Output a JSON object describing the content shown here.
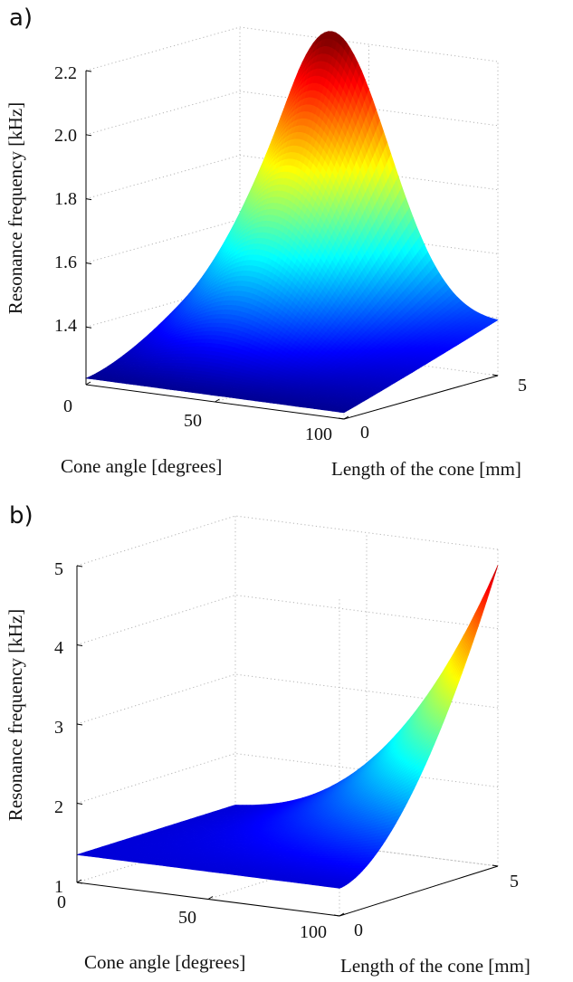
{
  "colors": {
    "colormap": "jet",
    "low": "#00008f",
    "mid": "#00ffff",
    "high": "#8f0000",
    "grid": "#b5b5b5"
  },
  "chart_data": [
    {
      "panel_label": "a)",
      "type": "surface",
      "xlabel": "Cone angle [degrees]",
      "ylabel": "Length of the cone [mm]",
      "zlabel": "Resonance frequency [kHz]",
      "x_ticks": [
        "0",
        "50",
        "100"
      ],
      "y_ticks": [
        "0",
        "5"
      ],
      "z_ticks": [
        "1.4",
        "1.6",
        "1.8",
        "2.0",
        "2.2"
      ],
      "xlim": [
        0,
        100
      ],
      "ylim": [
        0,
        5
      ],
      "zlim": [
        1.22,
        2.2
      ],
      "grid": true,
      "colorbar": false,
      "corner_values": {
        "angle_0_length_0": 1.24,
        "angle_100_length_0": 1.24,
        "angle_0_length_5": 1.3,
        "angle_100_length_5": 1.42,
        "peak": {
          "angle": 35,
          "length": 5,
          "value": 2.15
        }
      }
    },
    {
      "panel_label": "b)",
      "type": "surface",
      "xlabel": "Cone angle [degrees]",
      "ylabel": "Length of the cone [mm]",
      "zlabel": "Resonance frequency [kHz]",
      "x_ticks": [
        "0",
        "50",
        "100"
      ],
      "y_ticks": [
        "0",
        "5"
      ],
      "z_ticks": [
        "1",
        "2",
        "3",
        "4",
        "5"
      ],
      "xlim": [
        0,
        100
      ],
      "ylim": [
        0,
        5
      ],
      "zlim": [
        1,
        5
      ],
      "grid": true,
      "colorbar": false,
      "corner_values": {
        "angle_0_length_0": 1.35,
        "angle_100_length_0": 1.35,
        "angle_0_length_5": 1.35,
        "angle_100_length_5": 4.8
      }
    }
  ]
}
